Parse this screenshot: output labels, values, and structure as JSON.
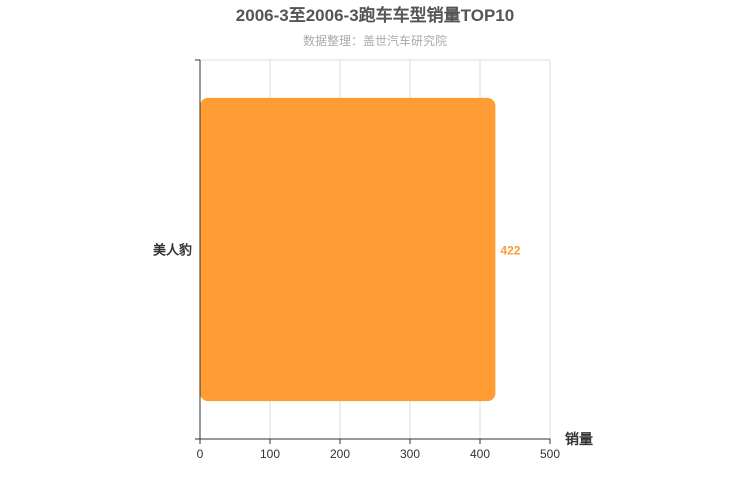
{
  "chart_data": {
    "type": "bar",
    "orientation": "horizontal",
    "title": "2006-3至2006-3跑车车型销量TOP10",
    "subtitle": "数据整理：盖世汽车研究院",
    "categories": [
      "美人豹"
    ],
    "values": [
      422
    ],
    "xlabel": "销量",
    "ylabel": "",
    "xlim": [
      0,
      500
    ],
    "xticks": [
      0,
      100,
      200,
      300,
      400,
      500
    ],
    "grid": true,
    "legend": "none",
    "bar_color": "#ff9c33",
    "label_color": "#ff9c33"
  }
}
